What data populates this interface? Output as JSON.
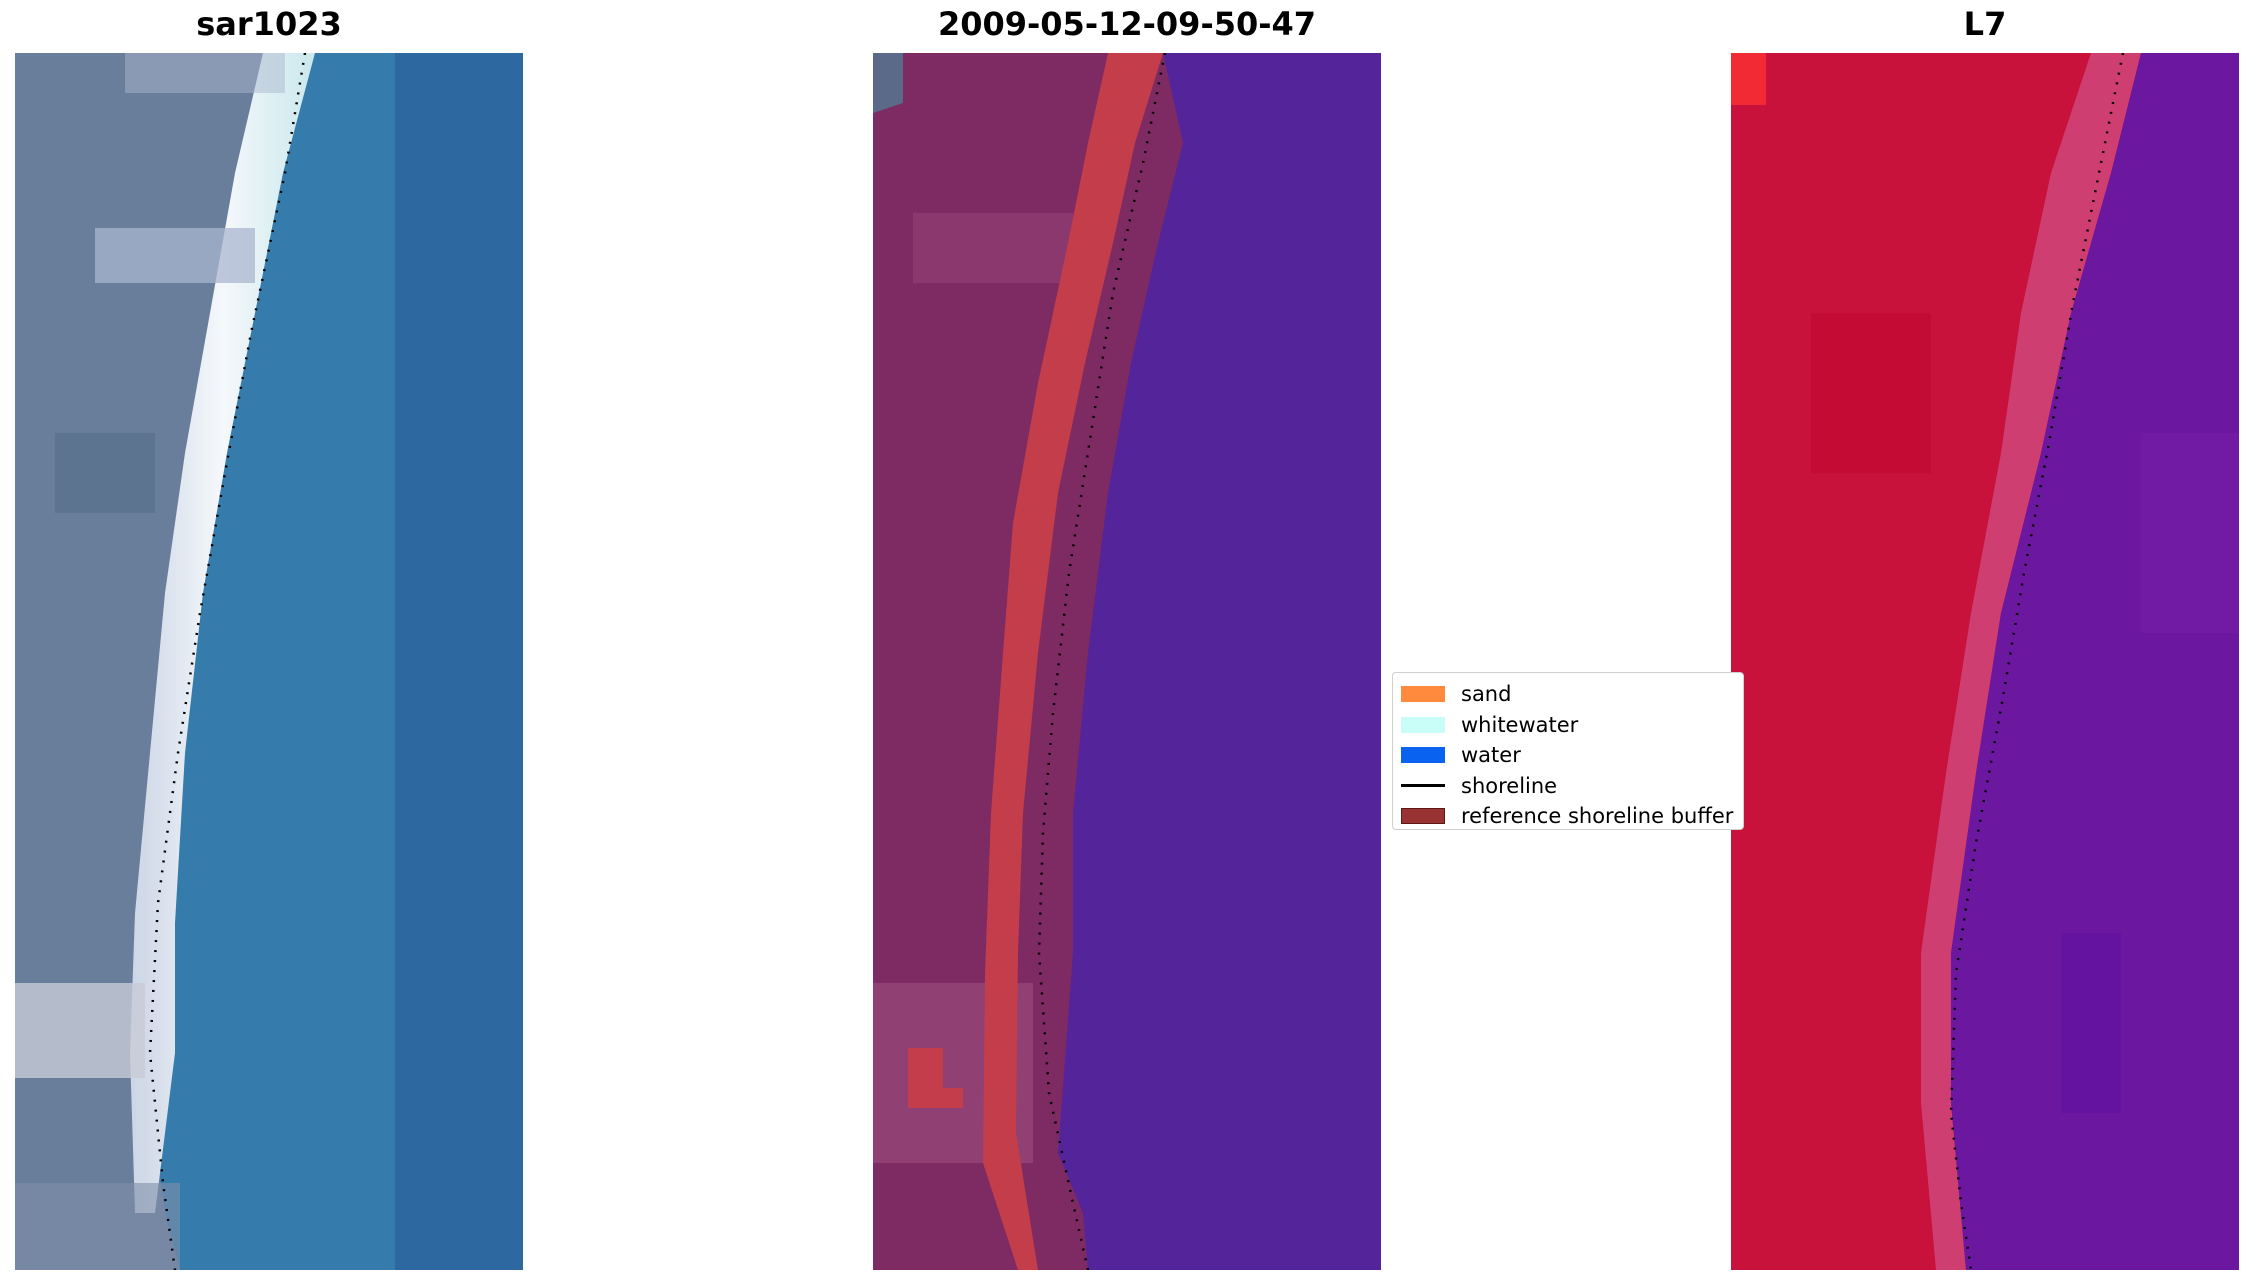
{
  "panels": [
    {
      "title": "sar1023",
      "kind": "rgb"
    },
    {
      "title": "2009-05-12-09-50-47",
      "kind": "classified"
    },
    {
      "title": "L7",
      "kind": "mndwi"
    }
  ],
  "legend": {
    "items": [
      {
        "label": "sand",
        "color": "#ff8a3d",
        "type": "patch"
      },
      {
        "label": "whitewater",
        "color": "#c8fdf8",
        "type": "patch"
      },
      {
        "label": "water",
        "color": "#0a62f0",
        "type": "patch"
      },
      {
        "label": "shoreline",
        "color": "#000000",
        "type": "line"
      },
      {
        "label": "reference shoreline buffer",
        "color": "#993333",
        "type": "patch"
      }
    ]
  },
  "colors": {
    "rgb_land": "#627996",
    "rgb_water": "#2d77a9",
    "rgb_beach": "#f2f6fa",
    "classified_land": "#7e2a63",
    "classified_buffer": "#c33d4b",
    "classified_water": "#54249a",
    "mndwi_land": "#c8113b",
    "mndwi_water": "#6c17a0"
  }
}
